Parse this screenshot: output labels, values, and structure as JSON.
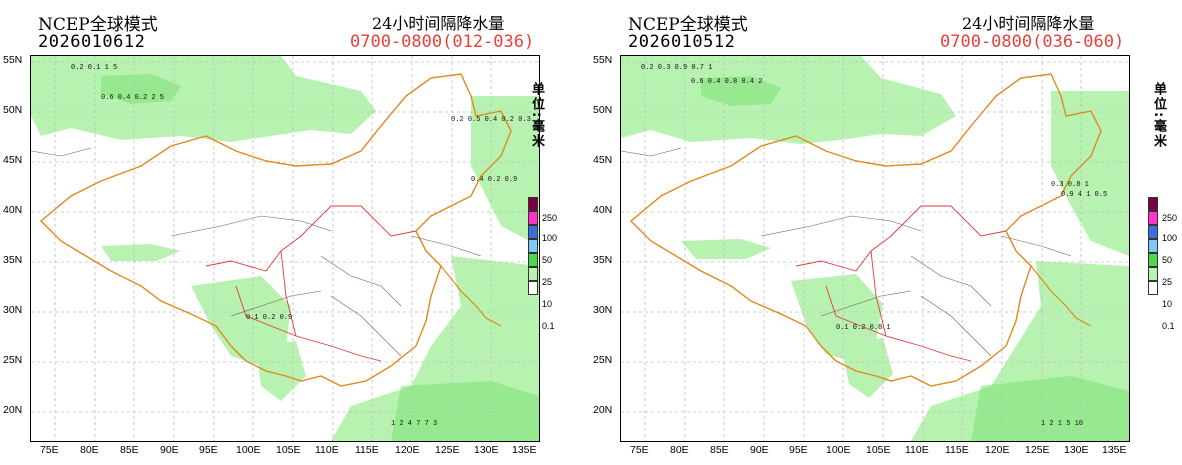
{
  "panels": [
    {
      "id": "left",
      "model_title": "NCEP全球模式",
      "init_time": "2026010612",
      "product": "24小时间隔降水量",
      "valid_period": "0700-0800(012-036)",
      "unit": "单位:毫米",
      "samples": [
        "0.2 0.1 1 5",
        "0.6 0.4 0.2 2 5",
        "1 2 4 7 7 3",
        "0.1 0.2 0.9",
        "0.4 0.2 0.9",
        "0.2 0.5 0.4 0.2 0.3"
      ]
    },
    {
      "id": "right",
      "model_title": "NCEP全球模式",
      "init_time": "2026010512",
      "product": "24小时间隔降水量",
      "valid_period": "0700-0800(036-060)",
      "unit": "单位:毫米",
      "samples": [
        "0.2 0.3 0.9 0.7 1",
        "0.6 0.4 0.8 0.4 2",
        "1 2 1 5 10",
        "0.1 0.2 0.8 1",
        "0.9 4 1 0.5",
        "0.3 0.8 1"
      ]
    }
  ],
  "axes": {
    "lat_labels": [
      "55N",
      "50N",
      "45N",
      "40N",
      "35N",
      "30N",
      "25N",
      "20N"
    ],
    "lon_labels": [
      "75E",
      "80E",
      "85E",
      "90E",
      "95E",
      "100E",
      "105E",
      "110E",
      "115E",
      "120E",
      "125E",
      "130E",
      "135E"
    ],
    "lat_values": [
      55,
      50,
      45,
      40,
      35,
      30,
      25,
      20
    ],
    "lon_values": [
      75,
      80,
      85,
      90,
      95,
      100,
      105,
      110,
      115,
      120,
      125,
      130,
      135
    ],
    "lat_range": [
      17,
      56
    ],
    "lon_range": [
      72,
      136
    ]
  },
  "legend": {
    "levels": [
      "250",
      "100",
      "50",
      "25",
      "10",
      "0.1"
    ],
    "colors": [
      "#7a0048",
      "#ff33cc",
      "#3a70e0",
      "#7fc7f5",
      "#4ad94a",
      "#b8f2b0",
      "#ffffff"
    ]
  },
  "colors": {
    "rain_light": "#b8f2b0",
    "rain_mid": "#7fe27a",
    "boundary_country": "#e0891e",
    "boundary_province": "#e23a3a",
    "boundary_local": "#7a5a4a",
    "title_red": "#e8413c"
  }
}
